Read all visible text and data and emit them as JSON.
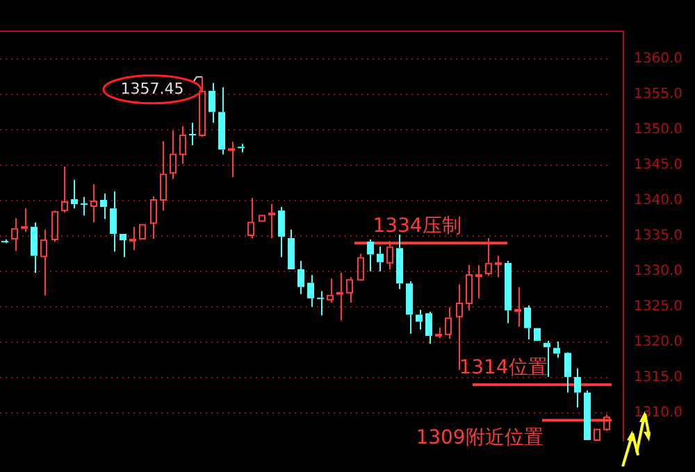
{
  "chart_data": {
    "type": "candlestick",
    "categories": [
      null,
      null,
      null,
      null,
      null,
      null,
      null,
      null,
      null,
      null,
      null,
      null,
      null,
      null,
      null,
      null,
      null,
      null,
      null,
      null,
      null,
      null,
      null,
      null,
      null,
      null,
      null,
      null,
      null,
      null,
      null,
      null,
      null,
      null,
      null,
      null,
      null,
      null,
      null,
      null,
      null,
      null,
      null,
      null,
      null,
      null,
      null,
      null,
      null,
      null,
      null,
      null,
      null,
      null,
      null,
      null,
      null,
      null,
      null,
      null,
      null,
      null
    ],
    "ohlc": [
      [
        1334.3,
        1334.5,
        1334.0,
        1334.1
      ],
      [
        1334.7,
        1337.5,
        1332.9,
        1336.1
      ],
      [
        1336.2,
        1338.9,
        1335.6,
        1336.4
      ],
      [
        1336.3,
        1336.9,
        1329.8,
        1332.2
      ],
      [
        1332.2,
        1335.9,
        1326.6,
        1334.5
      ],
      [
        1334.6,
        1338.6,
        1334.2,
        1338.5
      ],
      [
        1338.7,
        1344.8,
        1338.3,
        1339.9
      ],
      [
        1340.2,
        1342.9,
        1338.9,
        1339.5
      ],
      [
        1339.6,
        1340.5,
        1337.9,
        1339.5
      ],
      [
        1339.3,
        1342.3,
        1336.9,
        1340.0
      ],
      [
        1340.1,
        1341.0,
        1337.4,
        1339.1
      ],
      [
        1338.9,
        1341.3,
        1332.8,
        1335.3
      ],
      [
        1335.3,
        1335.3,
        1332.0,
        1334.4
      ],
      [
        1334.5,
        1336.3,
        1333.0,
        1334.6
      ],
      [
        1334.7,
        1336.7,
        1334.5,
        1336.7
      ],
      [
        1336.9,
        1340.6,
        1334.6,
        1340.2
      ],
      [
        1340.2,
        1348.4,
        1338.6,
        1343.8
      ],
      [
        1344.0,
        1349.9,
        1343.0,
        1346.6
      ],
      [
        1346.6,
        1350.5,
        1345.2,
        1349.3
      ],
      [
        1349.4,
        1351.0,
        1347.8,
        1349.3
      ],
      [
        1349.3,
        1357.45,
        1349.0,
        1355.5
      ],
      [
        1355.5,
        1356.6,
        1351.0,
        1352.5
      ],
      [
        1352.5,
        1356.0,
        1346.5,
        1347.2
      ],
      [
        1347.3,
        1348.3,
        1343.3,
        1347.4
      ],
      [
        1347.6,
        1348.0,
        1346.8,
        1347.4
      ],
      [
        1335.2,
        1340.4,
        1334.7,
        1337.0
      ],
      [
        1337.2,
        1338.0,
        1337.2,
        1338.0
      ],
      [
        1338.2,
        1339.5,
        1334.7,
        1338.3
      ],
      [
        1338.6,
        1339.1,
        1332.0,
        1334.9
      ],
      [
        1334.7,
        1335.9,
        1330.3,
        1330.3
      ],
      [
        1330.3,
        1331.5,
        1326.8,
        1327.8
      ],
      [
        1328.4,
        1329.5,
        1325.0,
        1326.2
      ],
      [
        1326.3,
        1327.2,
        1323.8,
        1326.2
      ],
      [
        1326.1,
        1329.0,
        1325.6,
        1326.7
      ],
      [
        1327.0,
        1329.8,
        1323.1,
        1327.1
      ],
      [
        1327.1,
        1329.2,
        1325.6,
        1328.9
      ],
      [
        1328.9,
        1332.5,
        1328.9,
        1332.0
      ],
      [
        1334.2,
        1334.5,
        1330.0,
        1332.4
      ],
      [
        1332.5,
        1333.5,
        1330.0,
        1331.3
      ],
      [
        1331.3,
        1334.3,
        1330.3,
        1333.5
      ],
      [
        1333.3,
        1335.2,
        1327.5,
        1328.3
      ],
      [
        1328.3,
        1328.6,
        1321.2,
        1323.9
      ],
      [
        1323.9,
        1324.6,
        1321.8,
        1322.9
      ],
      [
        1324.1,
        1324.3,
        1319.8,
        1320.9
      ],
      [
        1321.1,
        1322.1,
        1320.6,
        1321.2
      ],
      [
        1321.2,
        1324.9,
        1320.5,
        1323.5
      ],
      [
        1323.7,
        1328.2,
        1316.1,
        1325.6
      ],
      [
        1325.6,
        1330.9,
        1324.5,
        1329.6
      ],
      [
        1329.5,
        1330.9,
        1326.2,
        1329.6
      ],
      [
        1329.8,
        1334.7,
        1329.4,
        1331.2
      ],
      [
        1331.2,
        1332.2,
        1329.2,
        1331.3
      ],
      [
        1331.2,
        1331.5,
        1322.7,
        1324.5
      ],
      [
        1324.6,
        1327.8,
        1322.2,
        1324.7
      ],
      [
        1324.9,
        1325.2,
        1320.4,
        1322.0
      ],
      [
        1322.0,
        1322.0,
        1320.2,
        1320.2
      ],
      [
        1319.9,
        1320.2,
        1315.1,
        1319.3
      ],
      [
        1319.2,
        1320.1,
        1317.8,
        1318.4
      ],
      [
        1318.5,
        1318.6,
        1312.9,
        1315.1
      ],
      [
        1315.1,
        1316.3,
        1310.8,
        1312.9
      ],
      [
        1312.9,
        1313.2,
        1306.2,
        1306.2
      ],
      [
        1306.3,
        1307.8,
        1306.2,
        1307.8
      ],
      [
        1307.8,
        1309.8,
        1307.5,
        1309.5
      ]
    ],
    "colors": [
      "#54ffff",
      "#ff3c3c",
      "#ff3c3c",
      "#54ffff",
      "#ff3c3c",
      "#ff3c3c",
      "#ff3c3c",
      "#54ffff",
      "#54ffff",
      "#ff3c3c",
      "#54ffff",
      "#54ffff",
      "#54ffff",
      "#ff3c3c",
      "#ff3c3c",
      "#ff3c3c",
      "#ff3c3c",
      "#ff3c3c",
      "#ff3c3c",
      "#54ffff",
      "#ff3c3c",
      "#54ffff",
      "#54ffff",
      "#ff3c3c",
      "#54ffff",
      "#ff3c3c",
      "#ff3c3c",
      "#ff3c3c",
      "#54ffff",
      "#54ffff",
      "#54ffff",
      "#54ffff",
      "#54ffff",
      "#ff3c3c",
      "#ff3c3c",
      "#ff3c3c",
      "#ff3c3c",
      "#54ffff",
      "#54ffff",
      "#ff3c3c",
      "#54ffff",
      "#54ffff",
      "#54ffff",
      "#54ffff",
      "#ff3c3c",
      "#ff3c3c",
      "#ff3c3c",
      "#ff3c3c",
      "#ff3c3c",
      "#ff3c3c",
      "#ff3c3c",
      "#54ffff",
      "#ff3c3c",
      "#54ffff",
      "#54ffff",
      "#54ffff",
      "#54ffff",
      "#54ffff",
      "#54ffff",
      "#54ffff",
      "#ff3c3c",
      "#ff3c3c"
    ],
    "ylim": [
      1306,
      1364
    ],
    "yticks": [
      {
        "value": 1310,
        "label": "1310.0"
      },
      {
        "value": 1315,
        "label": "1315.0"
      },
      {
        "value": 1320,
        "label": "1320.0"
      },
      {
        "value": 1325,
        "label": "1325.0"
      },
      {
        "value": 1330,
        "label": "1330.0"
      },
      {
        "value": 1335,
        "label": "1335.0"
      },
      {
        "value": 1340,
        "label": "1340.0"
      },
      {
        "value": 1345,
        "label": "1345.0"
      },
      {
        "value": 1350,
        "label": "1350.0"
      },
      {
        "value": 1355,
        "label": "1355.0"
      },
      {
        "value": 1360,
        "label": "1360.0"
      }
    ],
    "grid": "y",
    "annotations": [
      "1357.45"
    ],
    "ref_lines": [
      {
        "axis": "y",
        "value": 1334,
        "label": "1334压制",
        "color": "#ff3c3c"
      },
      {
        "axis": "y",
        "value": 1314,
        "label": "1314位置",
        "color": "#ff3c3c"
      },
      {
        "axis": "y",
        "value": 1309,
        "label": "1309附近位置",
        "color": "#ff3c3c"
      }
    ]
  }
}
